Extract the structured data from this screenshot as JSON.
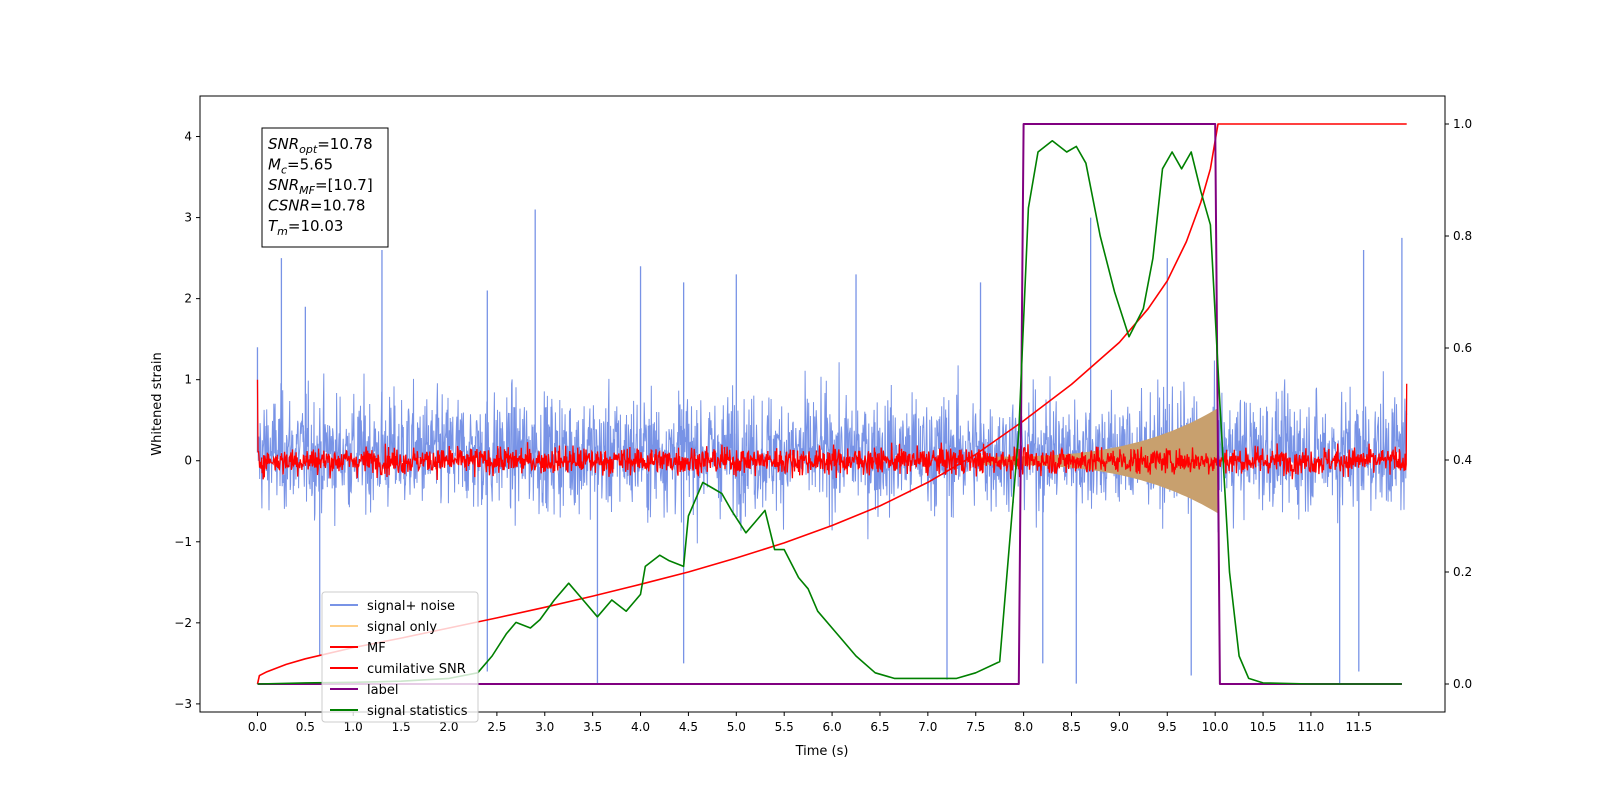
{
  "chart_data": {
    "type": "line",
    "xlabel": "Time (s)",
    "ylabel_left": "Whitened strain",
    "xlim": [
      -0.6,
      12.4
    ],
    "ylim_left": [
      -3.1,
      4.5
    ],
    "ylim_right": [
      -0.05,
      1.05
    ],
    "x_ticks": [
      0.0,
      0.5,
      1.0,
      1.5,
      2.0,
      2.5,
      3.0,
      3.5,
      4.0,
      4.5,
      5.0,
      5.5,
      6.0,
      6.5,
      7.0,
      7.5,
      8.0,
      8.5,
      9.0,
      9.5,
      10.0,
      10.5,
      11.0,
      11.5
    ],
    "x_tick_labels": [
      "0.0",
      "0.5",
      "1.0",
      "1.5",
      "2.0",
      "2.5",
      "3.0",
      "3.5",
      "4.0",
      "4.5",
      "5.0",
      "5.5",
      "6.0",
      "6.5",
      "7.0",
      "7.5",
      "8.0",
      "8.5",
      "9.0",
      "9.5",
      "10.0",
      "10.5",
      "11.0",
      "11.5"
    ],
    "y_ticks_left": [
      -3,
      -2,
      -1,
      0,
      1,
      2,
      3,
      4
    ],
    "y_tick_labels_left": [
      "−3",
      "−2",
      "−1",
      "0",
      "1",
      "2",
      "3",
      "4"
    ],
    "y_ticks_right": [
      0.0,
      0.2,
      0.4,
      0.6,
      0.8,
      1.0
    ],
    "y_tick_labels_right": [
      "0.0",
      "0.2",
      "0.4",
      "0.6",
      "0.8",
      "1.0"
    ],
    "legend_position": "lower-left",
    "legend": [
      {
        "label": "signal+ noise",
        "color": "#7893e6"
      },
      {
        "label": "signal only",
        "color": "#ffcf88"
      },
      {
        "label": "MF",
        "color": "#ff0000"
      },
      {
        "label": "cumilative SNR",
        "color": "#ff0000"
      },
      {
        "label": "label",
        "color": "#800080"
      },
      {
        "label": "signal statistics",
        "color": "#008000"
      }
    ],
    "annotation": {
      "lines": [
        {
          "sym": "SNR",
          "sub": "opt",
          "value": "=10.78"
        },
        {
          "sym": "M",
          "sub": "c",
          "value": "=5.65"
        },
        {
          "sym": "SNR",
          "sub": "MF",
          "value": "=[10.7]"
        },
        {
          "sym": "CSNR",
          "sub": "",
          "value": "=10.78"
        },
        {
          "sym": "T",
          "sub": "m",
          "value": "=10.03"
        }
      ]
    },
    "series": [
      {
        "name": "signal+ noise",
        "axis": "left",
        "color": "#7893e6",
        "x_range": [
          0.0,
          12.0
        ],
        "mean": 0.1,
        "envelope_upper": 1.7,
        "envelope_lower": -1.6,
        "peaks": [
          [
            0.0,
            1.4
          ],
          [
            0.25,
            2.5
          ],
          [
            0.5,
            1.9
          ],
          [
            1.3,
            2.6
          ],
          [
            2.4,
            2.1
          ],
          [
            2.9,
            3.1
          ],
          [
            4.0,
            2.4
          ],
          [
            4.45,
            2.2
          ],
          [
            5.0,
            2.3
          ],
          [
            6.25,
            2.3
          ],
          [
            7.55,
            2.2
          ],
          [
            8.7,
            3.0
          ],
          [
            9.5,
            2.5
          ],
          [
            11.55,
            2.6
          ],
          [
            11.95,
            2.75
          ],
          [
            0.65,
            -2.4
          ],
          [
            2.4,
            -2.6
          ],
          [
            3.55,
            -2.75
          ],
          [
            4.45,
            -2.5
          ],
          [
            7.2,
            -2.7
          ],
          [
            8.2,
            -2.5
          ],
          [
            8.55,
            -2.75
          ],
          [
            9.75,
            -2.65
          ],
          [
            11.3,
            -2.75
          ],
          [
            11.5,
            -2.6
          ]
        ]
      },
      {
        "name": "signal only",
        "axis": "left",
        "color": "#c8a06e",
        "chirp": {
          "start": 7.5,
          "end": 10.03,
          "amp_start": 0.05,
          "amp_end": 0.65,
          "end_amp": 1.0
        }
      },
      {
        "name": "MF",
        "axis": "left",
        "color": "#ff0000",
        "x_range": [
          0.0,
          12.0
        ],
        "mean": 0.0,
        "spread": 0.13,
        "start_value": 1.0,
        "end_value": 0.95
      },
      {
        "name": "cumilative SNR",
        "axis": "right",
        "color": "#ff0000",
        "x": [
          0.0,
          0.02,
          0.1,
          0.3,
          0.5,
          1.0,
          1.5,
          2.0,
          2.5,
          3.0,
          3.5,
          4.0,
          4.5,
          5.0,
          5.5,
          6.0,
          6.5,
          7.0,
          7.5,
          8.0,
          8.5,
          9.0,
          9.3,
          9.5,
          9.7,
          9.85,
          9.95,
          10.03,
          10.05,
          12.0
        ],
        "y": [
          0.0,
          0.015,
          0.022,
          0.035,
          0.045,
          0.065,
          0.082,
          0.1,
          0.118,
          0.137,
          0.157,
          0.178,
          0.2,
          0.225,
          0.252,
          0.283,
          0.318,
          0.36,
          0.41,
          0.47,
          0.535,
          0.61,
          0.67,
          0.72,
          0.79,
          0.86,
          0.92,
          1.0,
          1.0,
          1.0
        ]
      },
      {
        "name": "label",
        "axis": "right",
        "color": "#800080",
        "x": [
          0.0,
          7.95,
          8.0,
          10.0,
          10.05,
          11.95
        ],
        "y": [
          0.0,
          0.0,
          1.0,
          1.0,
          0.0,
          0.0
        ]
      },
      {
        "name": "signal statistics",
        "axis": "right",
        "color": "#008000",
        "x": [
          0.0,
          0.5,
          1.0,
          1.5,
          2.0,
          2.3,
          2.45,
          2.6,
          2.7,
          2.85,
          2.95,
          3.1,
          3.25,
          3.4,
          3.55,
          3.7,
          3.85,
          4.0,
          4.05,
          4.2,
          4.3,
          4.45,
          4.5,
          4.65,
          4.75,
          4.85,
          4.95,
          5.1,
          5.2,
          5.3,
          5.4,
          5.5,
          5.65,
          5.75,
          5.85,
          6.05,
          6.25,
          6.45,
          6.65,
          7.0,
          7.3,
          7.5,
          7.75,
          7.95,
          8.05,
          8.15,
          8.3,
          8.45,
          8.55,
          8.65,
          8.8,
          8.95,
          9.1,
          9.25,
          9.35,
          9.45,
          9.55,
          9.65,
          9.75,
          9.85,
          9.95,
          10.05,
          10.15,
          10.25,
          10.35,
          10.5,
          11.0,
          11.5,
          11.95
        ],
        "y": [
          0.0,
          0.002,
          0.003,
          0.005,
          0.01,
          0.02,
          0.05,
          0.09,
          0.11,
          0.1,
          0.115,
          0.15,
          0.18,
          0.15,
          0.12,
          0.15,
          0.13,
          0.16,
          0.21,
          0.23,
          0.22,
          0.21,
          0.3,
          0.36,
          0.35,
          0.34,
          0.31,
          0.27,
          0.29,
          0.31,
          0.24,
          0.24,
          0.19,
          0.17,
          0.13,
          0.09,
          0.05,
          0.02,
          0.01,
          0.01,
          0.01,
          0.02,
          0.04,
          0.45,
          0.85,
          0.95,
          0.97,
          0.95,
          0.96,
          0.93,
          0.8,
          0.7,
          0.62,
          0.67,
          0.76,
          0.92,
          0.95,
          0.92,
          0.95,
          0.88,
          0.82,
          0.5,
          0.2,
          0.05,
          0.01,
          0.002,
          0.0,
          0.0,
          0.0
        ]
      }
    ]
  }
}
